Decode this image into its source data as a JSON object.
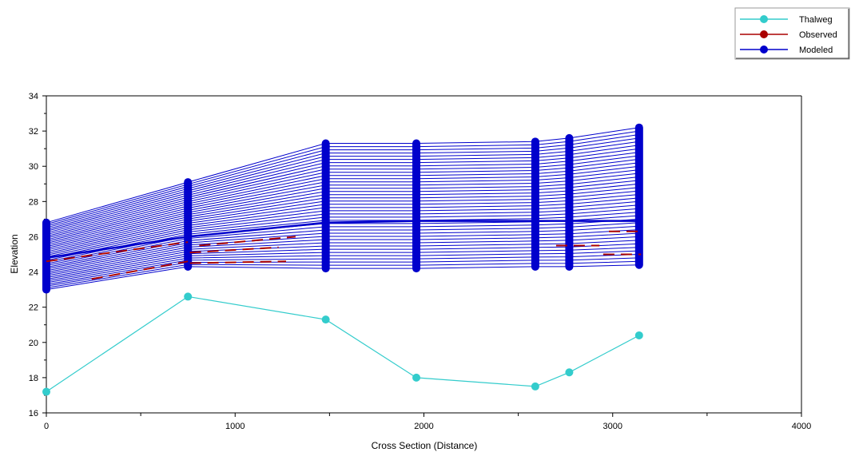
{
  "chart_data": {
    "type": "line",
    "title": "",
    "xlabel": "Cross Section (Distance)",
    "ylabel": "Elevation",
    "xlim": [
      0,
      4000
    ],
    "ylim": [
      16,
      34
    ],
    "x_ticks": [
      0,
      1000,
      2000,
      3000,
      4000
    ],
    "y_ticks": [
      16,
      18,
      20,
      22,
      24,
      26,
      28,
      30,
      32,
      34
    ],
    "grid": false,
    "legend_position": "top-right",
    "colors": {
      "thalweg": "#33cccc",
      "observed": "#aa0000",
      "modeled": "#0000cc"
    },
    "series": [
      {
        "name": "Thalweg",
        "x": [
          0,
          750,
          1480,
          1960,
          2590,
          2770,
          3140
        ],
        "values": [
          17.2,
          22.6,
          21.3,
          18.0,
          17.5,
          18.3,
          20.4
        ]
      },
      {
        "name": "Observed",
        "segments": [
          {
            "x": [
              0,
              750
            ],
            "values": [
              24.6,
              25.7
            ]
          },
          {
            "x": [
              240,
              750
            ],
            "values": [
              23.6,
              24.6
            ]
          },
          {
            "x": [
              760,
              1230
            ],
            "values": [
              25.1,
              25.4
            ]
          },
          {
            "x": [
              760,
              1270
            ],
            "values": [
              24.5,
              24.6
            ]
          },
          {
            "x": [
              810,
              1320
            ],
            "values": [
              25.5,
              26.0
            ]
          },
          {
            "x": [
              2700,
              2930
            ],
            "values": [
              25.5,
              25.5
            ]
          },
          {
            "x": [
              2950,
              3150
            ],
            "values": [
              25.0,
              25.0
            ]
          },
          {
            "x": [
              2980,
              3150
            ],
            "values": [
              26.3,
              26.3
            ]
          }
        ]
      },
      {
        "name": "Modeled",
        "x": [
          0,
          750,
          1480,
          1960,
          2590,
          2770,
          3140
        ],
        "low": [
          23.0,
          24.3,
          24.2,
          24.2,
          24.3,
          24.3,
          24.4
        ],
        "high": [
          26.8,
          29.1,
          31.3,
          31.3,
          31.4,
          31.6,
          32.2
        ],
        "profile_count": 40,
        "highlighted_profiles": [
          {
            "x": [
              0,
              750,
              1480,
              1960,
              2590,
              2770,
              3140
            ],
            "values": [
              24.8,
              26.0,
              26.8,
              26.9,
              26.9,
              26.9,
              26.9
            ]
          }
        ]
      }
    ]
  }
}
